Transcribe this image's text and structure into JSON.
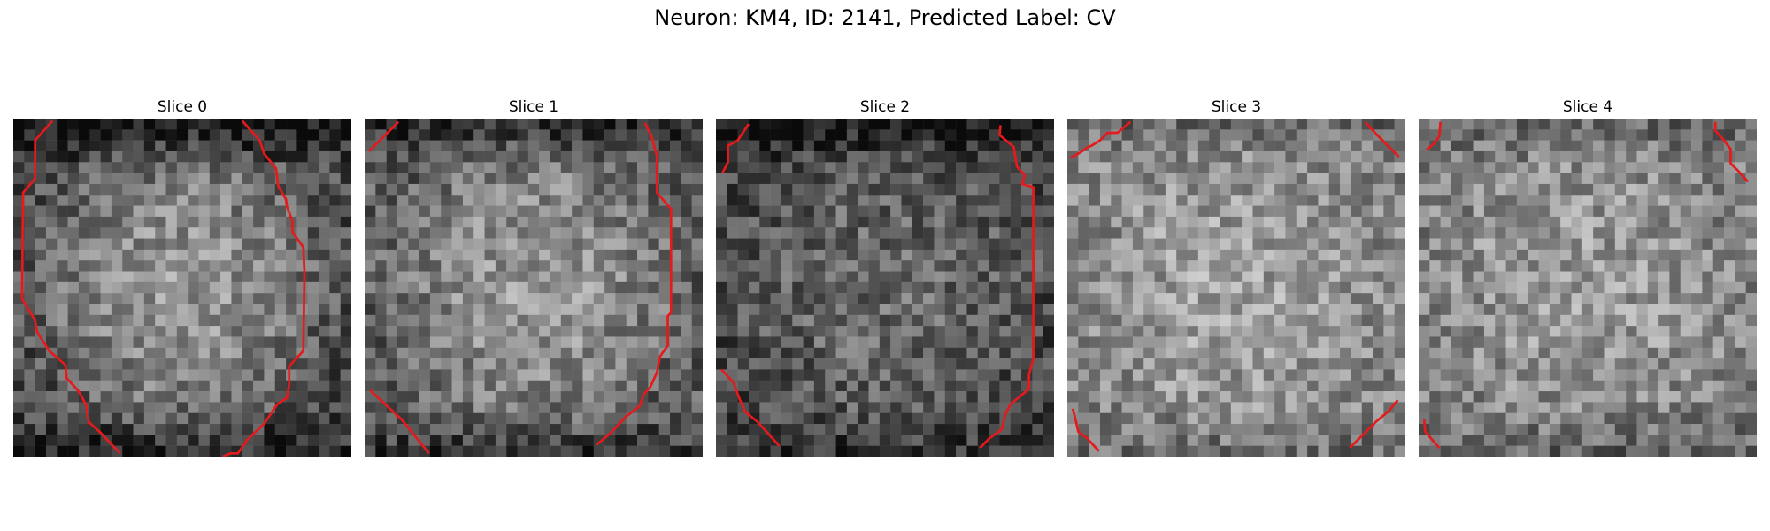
{
  "figure": {
    "title": "Neuron: KM4, ID: 2141, Predicted Label: CV"
  },
  "slices": [
    {
      "title": "Slice 0",
      "contour_color": "#e41a1c"
    },
    {
      "title": "Slice 1",
      "contour_color": "#e41a1c"
    },
    {
      "title": "Slice 2",
      "contour_color": "#e41a1c"
    },
    {
      "title": "Slice 3",
      "contour_color": "#e41a1c"
    },
    {
      "title": "Slice 4",
      "contour_color": "#e41a1c"
    }
  ],
  "colormap": "grayscale"
}
